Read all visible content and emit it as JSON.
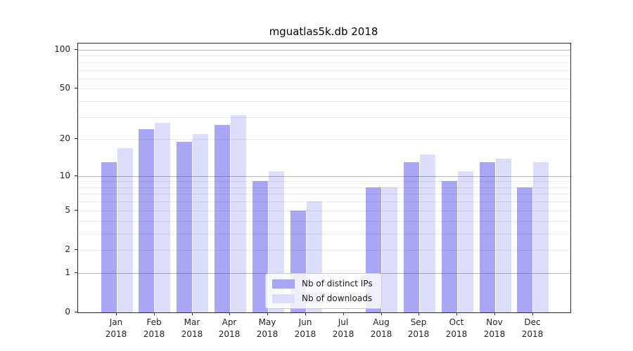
{
  "title": "mguatlas5k.db 2018",
  "chart_data": {
    "type": "bar",
    "title": "mguatlas5k.db 2018",
    "categories": [
      "Jan",
      "Feb",
      "Mar",
      "Apr",
      "May",
      "Jun",
      "Jul",
      "Aug",
      "Sep",
      "Oct",
      "Nov",
      "Dec"
    ],
    "year": "2018",
    "series": [
      {
        "name": "Nb of distinct IPs",
        "color": "#a7a7f6",
        "values": [
          13,
          24,
          19,
          26,
          9,
          5,
          0,
          8,
          13,
          9,
          13,
          8
        ]
      },
      {
        "name": "Nb of downloads",
        "color": "#dcdcfb",
        "values": [
          17,
          27,
          22,
          31,
          11,
          6,
          0,
          8,
          15,
          11,
          14,
          13
        ]
      }
    ],
    "xlabel": "",
    "ylabel": "",
    "yscale": "log1p",
    "ylim": [
      0,
      112
    ],
    "y_ticks": [
      "0",
      "1",
      "2",
      "5",
      "10",
      "20",
      "50",
      "100"
    ],
    "y_tick_values": [
      0,
      1,
      2,
      5,
      10,
      20,
      50,
      100
    ],
    "y_major_gridlines": [
      1,
      10,
      100
    ],
    "y_minor_gridlines": [
      2,
      3,
      4,
      5,
      6,
      7,
      8,
      9,
      20,
      30,
      40,
      50,
      60,
      70,
      80,
      90,
      110
    ],
    "grid": true,
    "legend_position": "lower center"
  }
}
